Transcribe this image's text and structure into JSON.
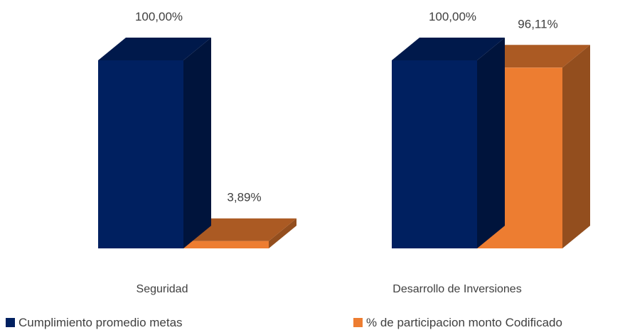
{
  "chart_data": {
    "type": "bar",
    "style": "3d-clustered-column",
    "title": "",
    "xlabel": "",
    "ylabel": "",
    "ylim": [
      0,
      100
    ],
    "grid": false,
    "legend_position": "bottom",
    "categories": [
      "Seguridad",
      "Desarrollo de Inversiones"
    ],
    "series": [
      {
        "name": "Cumplimiento promedio metas",
        "color": "#002060",
        "values": [
          100,
          100
        ],
        "labels": [
          "100,00%",
          "100,00%"
        ]
      },
      {
        "name": "% de participacion monto Codificado",
        "color": "#ED7D31",
        "values": [
          3.89,
          96.11
        ],
        "labels": [
          "3,89%",
          "96,11%"
        ]
      }
    ]
  }
}
